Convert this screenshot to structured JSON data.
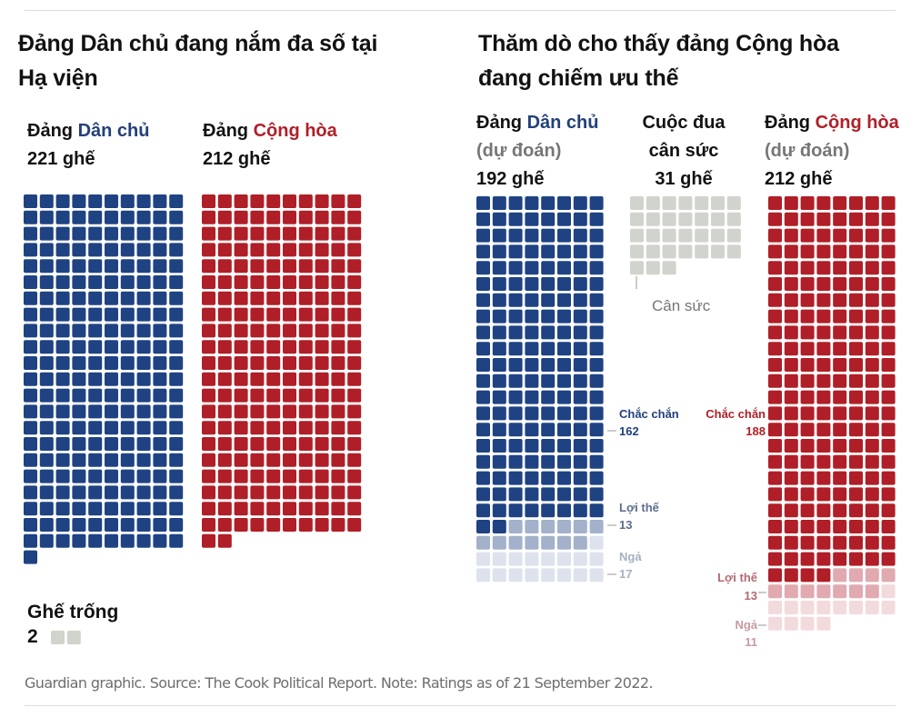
{
  "left_panel": {
    "title_line1": "Đảng Dân chủ đang nắm đa số tại",
    "title_line2": "Hạ viện",
    "dem": {
      "prefix": "Đảng ",
      "name": "Dân chủ",
      "count": "221 ghế"
    },
    "rep": {
      "prefix": "Đảng ",
      "name": "Cộng hòa",
      "count": "212 ghế"
    },
    "vacant": {
      "label": "Ghế trống",
      "count": "2"
    }
  },
  "right_panel": {
    "title_line1": "Thăm dò cho thấy đảng Cộng hòa",
    "title_line2": "đang chiếm ưu thế",
    "dem": {
      "prefix": "Đảng ",
      "name": "Dân chủ",
      "sub": "(dự đoán)",
      "count": "192 ghế"
    },
    "tossup": {
      "line1": "Cuộc đua",
      "line2": "cân sức",
      "count": "31 ghế",
      "label": "Cân sức"
    },
    "rep": {
      "prefix": "Đảng ",
      "name": "Cộng hòa",
      "sub": "(dự đoán)",
      "count": "212 ghế"
    }
  },
  "footer": "Guardian graphic. Source: The Cook Political Report. Note: Ratings as of 21 September 2022.",
  "colors": {
    "dem_solid": "#1f4283",
    "dem_lean": "#a3b1ca",
    "dem_likely": "#dde2ed",
    "rep_solid": "#b01e27",
    "rep_lean": "#e0aab0",
    "rep_likely": "#f2dadd",
    "tossup": "#d1d3cd",
    "dem_text": "#22407a",
    "rep_text": "#b02028"
  },
  "chart_data": [
    {
      "type": "waffle",
      "title": "Đảng Dân chủ đang nắm đa số tại Hạ viện",
      "series": [
        {
          "name": "Đảng Dân chủ",
          "value": 221
        },
        {
          "name": "Đảng Cộng hòa",
          "value": 212
        },
        {
          "name": "Ghế trống",
          "value": 2
        }
      ]
    },
    {
      "type": "waffle",
      "title": "Thăm dò cho thấy đảng Cộng hòa đang chiếm ưu thế",
      "series": [
        {
          "name": "Đảng Dân chủ (dự đoán)",
          "total": 192,
          "segments": [
            {
              "name": "Chắc chắn",
              "value": 162
            },
            {
              "name": "Lợi thế",
              "value": 13
            },
            {
              "name": "Ngả",
              "value": 17
            }
          ]
        },
        {
          "name": "Cuộc đua cân sức",
          "total": 31,
          "segments": [
            {
              "name": "Cân sức",
              "value": 31
            }
          ]
        },
        {
          "name": "Đảng Cộng hòa (dự đoán)",
          "total": 212,
          "segments": [
            {
              "name": "Chắc chắn",
              "value": 188
            },
            {
              "name": "Lợi thế",
              "value": 13
            },
            {
              "name": "Ngả",
              "value": 11
            }
          ]
        }
      ]
    }
  ]
}
